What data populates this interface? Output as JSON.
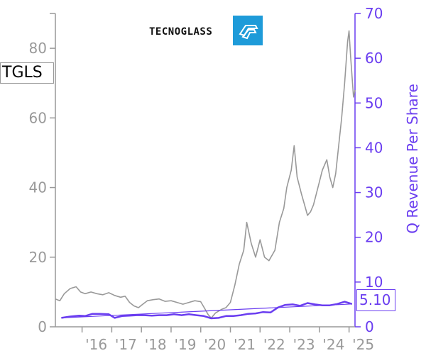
{
  "ticker": "TGLS",
  "current_value": "5.10",
  "brand": {
    "name": "TECNOGLASS",
    "logo_icon": "tecnoglass-logo-icon",
    "logo_color": "#1e9bd9"
  },
  "colors": {
    "price": "#999999",
    "revenue": "#6a3df0",
    "trend": "#6a3df0",
    "axis_left": "#999999"
  },
  "chart_data": {
    "type": "line",
    "title": "",
    "left_axis": {
      "label": "",
      "ticks": [
        0,
        20,
        40,
        60,
        80
      ],
      "range": [
        0,
        90
      ]
    },
    "right_axis": {
      "label": "Q Revenue Per Share",
      "ticks": [
        0,
        10,
        20,
        30,
        40,
        50,
        60,
        70
      ],
      "range": [
        0,
        70
      ]
    },
    "x_axis": {
      "ticks": [
        "'16",
        "'17",
        "'18",
        "'19",
        "'20",
        "'21",
        "'22",
        "'23",
        "'24",
        "'25"
      ],
      "range": [
        2015.1,
        2025.2
      ]
    },
    "series": [
      {
        "axis": "left",
        "points": [
          [
            2015.1,
            8
          ],
          [
            2015.25,
            7.5
          ],
          [
            2015.4,
            9.5
          ],
          [
            2015.6,
            11
          ],
          [
            2015.8,
            11.5
          ],
          [
            2015.95,
            10
          ],
          [
            2016.1,
            9.5
          ],
          [
            2016.3,
            10
          ],
          [
            2016.5,
            9.5
          ],
          [
            2016.7,
            9.2
          ],
          [
            2016.9,
            9.8
          ],
          [
            2017.1,
            9
          ],
          [
            2017.3,
            8.5
          ],
          [
            2017.45,
            8.8
          ],
          [
            2017.6,
            7
          ],
          [
            2017.75,
            6
          ],
          [
            2017.9,
            5.5
          ],
          [
            2018.0,
            6.2
          ],
          [
            2018.2,
            7.5
          ],
          [
            2018.4,
            7.8
          ],
          [
            2018.6,
            8
          ],
          [
            2018.8,
            7.3
          ],
          [
            2019.0,
            7.5
          ],
          [
            2019.2,
            7
          ],
          [
            2019.4,
            6.5
          ],
          [
            2019.6,
            7
          ],
          [
            2019.8,
            7.5
          ],
          [
            2020.0,
            7.2
          ],
          [
            2020.15,
            5
          ],
          [
            2020.25,
            3.5
          ],
          [
            2020.35,
            2.5
          ],
          [
            2020.5,
            4
          ],
          [
            2020.7,
            5
          ],
          [
            2020.85,
            5.5
          ],
          [
            2021.0,
            7
          ],
          [
            2021.15,
            12
          ],
          [
            2021.3,
            18
          ],
          [
            2021.45,
            22
          ],
          [
            2021.55,
            30
          ],
          [
            2021.7,
            24
          ],
          [
            2021.85,
            20
          ],
          [
            2022.0,
            25
          ],
          [
            2022.15,
            20
          ],
          [
            2022.3,
            19
          ],
          [
            2022.5,
            22
          ],
          [
            2022.65,
            30
          ],
          [
            2022.8,
            34
          ],
          [
            2022.9,
            40
          ],
          [
            2023.05,
            45
          ],
          [
            2023.15,
            52
          ],
          [
            2023.25,
            43
          ],
          [
            2023.4,
            38
          ],
          [
            2023.5,
            35
          ],
          [
            2023.6,
            32
          ],
          [
            2023.7,
            33
          ],
          [
            2023.8,
            35
          ],
          [
            2023.95,
            40
          ],
          [
            2024.1,
            45
          ],
          [
            2024.25,
            48
          ],
          [
            2024.35,
            43
          ],
          [
            2024.45,
            40
          ],
          [
            2024.55,
            44
          ],
          [
            2024.65,
            52
          ],
          [
            2024.75,
            60
          ],
          [
            2024.85,
            70
          ],
          [
            2024.95,
            82
          ],
          [
            2025.0,
            85
          ],
          [
            2025.05,
            78
          ],
          [
            2025.1,
            72
          ],
          [
            2025.15,
            66
          ],
          [
            2025.2,
            68
          ]
        ]
      },
      {
        "axis": "right",
        "points": [
          [
            2015.3,
            2.0
          ],
          [
            2015.6,
            2.3
          ],
          [
            2015.9,
            2.5
          ],
          [
            2016.1,
            2.4
          ],
          [
            2016.35,
            2.9
          ],
          [
            2016.6,
            2.9
          ],
          [
            2016.9,
            2.8
          ],
          [
            2017.1,
            2.0
          ],
          [
            2017.35,
            2.4
          ],
          [
            2017.6,
            2.5
          ],
          [
            2017.85,
            2.6
          ],
          [
            2018.1,
            2.6
          ],
          [
            2018.35,
            2.5
          ],
          [
            2018.6,
            2.6
          ],
          [
            2018.85,
            2.6
          ],
          [
            2019.1,
            2.8
          ],
          [
            2019.35,
            2.6
          ],
          [
            2019.6,
            2.8
          ],
          [
            2019.85,
            2.6
          ],
          [
            2020.1,
            2.4
          ],
          [
            2020.35,
            1.9
          ],
          [
            2020.6,
            2.0
          ],
          [
            2020.85,
            2.4
          ],
          [
            2021.1,
            2.4
          ],
          [
            2021.35,
            2.6
          ],
          [
            2021.6,
            2.9
          ],
          [
            2021.85,
            3.0
          ],
          [
            2022.1,
            3.3
          ],
          [
            2022.35,
            3.2
          ],
          [
            2022.6,
            4.3
          ],
          [
            2022.85,
            4.9
          ],
          [
            2023.1,
            5.0
          ],
          [
            2023.35,
            4.7
          ],
          [
            2023.6,
            5.3
          ],
          [
            2023.85,
            5.0
          ],
          [
            2024.1,
            4.8
          ],
          [
            2024.35,
            4.8
          ],
          [
            2024.6,
            5.1
          ],
          [
            2024.85,
            5.6
          ],
          [
            2025.1,
            5.1
          ]
        ]
      },
      {
        "axis": "right",
        "points": [
          [
            2015.3,
            2.0
          ],
          [
            2025.1,
            5.1
          ]
        ]
      }
    ]
  }
}
